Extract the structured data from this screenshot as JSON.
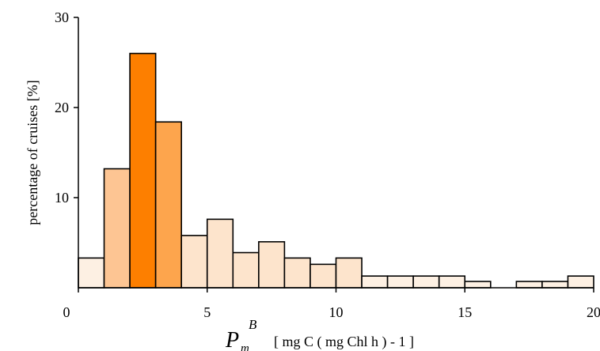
{
  "chart_data": {
    "type": "bar",
    "bin_edges": [
      0,
      1,
      2,
      3,
      4,
      5,
      6,
      7,
      8,
      9,
      10,
      11,
      12,
      13,
      14,
      15,
      16,
      17,
      18,
      19,
      20
    ],
    "values": [
      3.3,
      13.2,
      26.0,
      18.4,
      5.8,
      7.6,
      3.9,
      5.1,
      3.3,
      2.6,
      3.3,
      1.3,
      1.3,
      1.3,
      1.3,
      0.7,
      0,
      0.7,
      0.7,
      1.3
    ],
    "colors": [
      "#fdf0e3",
      "#fdc593",
      "#fd7f00",
      "#fda54d",
      "#fde4cc",
      "#fde4cc",
      "#fde4cc",
      "#fde4cc",
      "#fde4cc",
      "#fde4cc",
      "#fde4cc",
      "#fdf0e3",
      "#fdf0e3",
      "#fdf0e3",
      "#fdf0e3",
      "#fdf0e3",
      "#fdf0e3",
      "#fdf0e3",
      "#fdf0e3",
      "#fdf0e3"
    ],
    "xlim": [
      0,
      20
    ],
    "ylim": [
      0,
      30
    ],
    "xticks": [
      0,
      5,
      10,
      15,
      20
    ],
    "yticks": [
      10,
      20,
      30
    ],
    "x_tick_labels": [
      "0",
      "5",
      "10",
      "15",
      "20"
    ],
    "y_tick_labels": [
      "10",
      "20",
      "30"
    ],
    "ylabel": "percentage of cruises [%]",
    "xlabel_symbol": "P",
    "xlabel_subscript": "m",
    "xlabel_superscript": "B",
    "xlabel_units": "[ mg C ( mg Chl h ) - 1 ]",
    "edge_color": "#000000",
    "grid": false
  }
}
